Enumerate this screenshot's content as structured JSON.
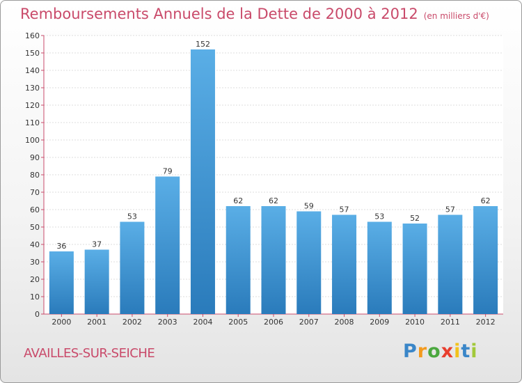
{
  "chart_data": {
    "type": "bar",
    "title": "Remboursements Annuels de la Dette de 2000 à 2012",
    "unit_note": "(en milliers d'€)",
    "categories": [
      "2000",
      "2001",
      "2002",
      "2003",
      "2004",
      "2005",
      "2006",
      "2007",
      "2008",
      "2009",
      "2010",
      "2011",
      "2012"
    ],
    "values": [
      36,
      37,
      53,
      79,
      152,
      62,
      62,
      59,
      57,
      53,
      52,
      57,
      62
    ],
    "ylim": [
      0,
      160
    ],
    "yticks": [
      0,
      10,
      20,
      30,
      40,
      50,
      60,
      70,
      80,
      90,
      100,
      110,
      120,
      130,
      140,
      150,
      160
    ],
    "xlabel": "",
    "ylabel": "",
    "grid": true,
    "bar_color_top": "#5aaee6",
    "bar_color_bottom": "#2a7bbb",
    "axis_color": "#c94a6a"
  },
  "commune": "AVAILLES-SUR-SEICHE",
  "logo": {
    "letters": [
      "P",
      "r",
      "o",
      "x",
      "i",
      "t",
      "i"
    ],
    "colors": [
      "#3a86c8",
      "#f39a1e",
      "#4ba83f",
      "#e83e2e",
      "#f2c21b",
      "#3a86c8",
      "#a2c93a"
    ]
  }
}
